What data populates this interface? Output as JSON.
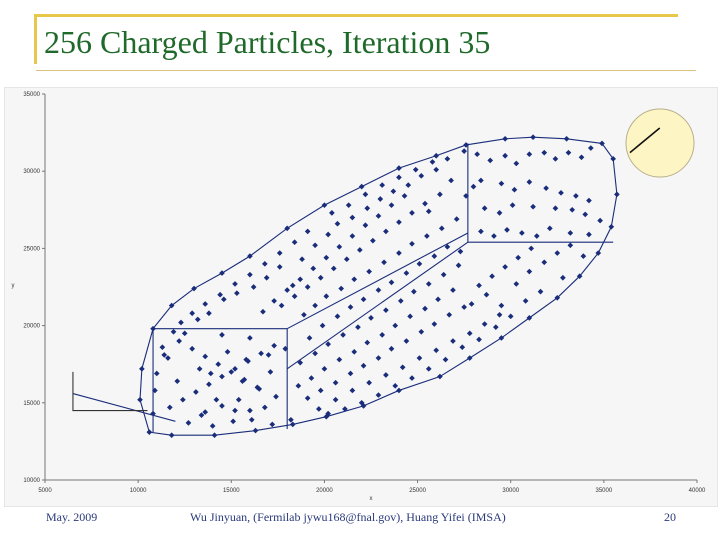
{
  "slide": {
    "title": "256 Charged Particles, Iteration 35",
    "footer_date": "May. 2009",
    "footer_credit": "Wu Jinyuan, (Fermilab jywu168@fnal.gov), Huang Yifei (IMSA)",
    "page_number": "20"
  },
  "colors": {
    "accent_bar": "#e8c84a",
    "title": "#1f6a2a",
    "points": "#1a2d7a",
    "hull": "#1a2d7a",
    "direction_circle": "#fdf5c4"
  },
  "chart_data": {
    "type": "scatter",
    "xlabel": "x",
    "ylabel": "y",
    "xlim": [
      5000,
      40000
    ],
    "ylim": [
      10000,
      35000
    ],
    "xticks": [
      5000,
      10000,
      15000,
      20000,
      25000,
      30000,
      35000,
      40000
    ],
    "yticks": [
      10000,
      15000,
      20000,
      25000,
      30000,
      35000
    ],
    "x_tick_labels": [
      "5000",
      "10000",
      "15000",
      "20000",
      "25000",
      "30000",
      "35000",
      "40000"
    ],
    "y_tick_labels": [
      "10000",
      "15000",
      "20000",
      "25000",
      "30000",
      "35000"
    ],
    "grid": false,
    "hull_points": [
      [
        10200,
        17200
      ],
      [
        10800,
        19800
      ],
      [
        11800,
        21300
      ],
      [
        13000,
        22400
      ],
      [
        14500,
        23400
      ],
      [
        16000,
        24500
      ],
      [
        18000,
        26300
      ],
      [
        20000,
        27800
      ],
      [
        22000,
        29000
      ],
      [
        24000,
        30200
      ],
      [
        26000,
        31000
      ],
      [
        27600,
        31700
      ],
      [
        29700,
        32100
      ],
      [
        31200,
        32200
      ],
      [
        33000,
        32100
      ],
      [
        34900,
        31800
      ],
      [
        35500,
        30800
      ],
      [
        35700,
        28500
      ],
      [
        35400,
        26400
      ],
      [
        34700,
        24700
      ],
      [
        33700,
        23200
      ],
      [
        32500,
        21800
      ],
      [
        31000,
        20500
      ],
      [
        29500,
        19200
      ],
      [
        27800,
        17900
      ],
      [
        26200,
        16700
      ],
      [
        24000,
        15800
      ],
      [
        22100,
        14800
      ],
      [
        20100,
        14100
      ],
      [
        18300,
        13600
      ],
      [
        16300,
        13200
      ],
      [
        14100,
        12900
      ],
      [
        11800,
        12900
      ],
      [
        10600,
        13100
      ],
      [
        10100,
        15200
      ]
    ],
    "box_lines": [
      [
        [
          10800,
          19800
        ],
        [
          18000,
          19800
        ]
      ],
      [
        [
          10800,
          19800
        ],
        [
          10800,
          13100
        ]
      ],
      [
        [
          18000,
          19800
        ],
        [
          18000,
          13300
        ]
      ],
      [
        [
          27700,
          31800
        ],
        [
          27700,
          25400
        ]
      ],
      [
        [
          27700,
          25400
        ],
        [
          35500,
          25400
        ]
      ],
      [
        [
          18000,
          19800
        ],
        [
          27700,
          26000
        ]
      ],
      [
        [
          18000,
          17200
        ],
        [
          27700,
          25400
        ]
      ],
      [
        [
          6500,
          15600
        ],
        [
          12000,
          13800
        ]
      ]
    ],
    "axes_glyph": [
      [
        6500,
        17000
      ],
      [
        6500,
        14500
      ],
      [
        10500,
        14500
      ]
    ],
    "direction_arrow": {
      "from": [
        38000,
        32800
      ],
      "to": [
        36400,
        31200
      ]
    },
    "points": [
      [
        10900,
        15800
      ],
      [
        11600,
        17900
      ],
      [
        12100,
        16400
      ],
      [
        11300,
        18600
      ],
      [
        12700,
        13700
      ],
      [
        13400,
        14200
      ],
      [
        12500,
        19500
      ],
      [
        13300,
        17200
      ],
      [
        13900,
        16900
      ],
      [
        14200,
        15200
      ],
      [
        14800,
        18300
      ],
      [
        15200,
        14500
      ],
      [
        15600,
        16400
      ],
      [
        15800,
        17800
      ],
      [
        16500,
        15900
      ],
      [
        17100,
        17000
      ],
      [
        16800,
        14700
      ],
      [
        17400,
        15400
      ],
      [
        17900,
        18500
      ],
      [
        16000,
        19200
      ],
      [
        14500,
        19400
      ],
      [
        13200,
        20400
      ],
      [
        13800,
        20800
      ],
      [
        14600,
        21700
      ],
      [
        15300,
        22100
      ],
      [
        16200,
        22500
      ],
      [
        16900,
        23100
      ],
      [
        17600,
        23800
      ],
      [
        18300,
        22600
      ],
      [
        18800,
        24300
      ],
      [
        19500,
        25200
      ],
      [
        20200,
        25900
      ],
      [
        20700,
        26600
      ],
      [
        21500,
        27000
      ],
      [
        22300,
        27600
      ],
      [
        23000,
        28200
      ],
      [
        23700,
        28700
      ],
      [
        24500,
        29100
      ],
      [
        25200,
        29700
      ],
      [
        26000,
        30100
      ],
      [
        26600,
        30800
      ],
      [
        27500,
        31300
      ],
      [
        28200,
        31100
      ],
      [
        28900,
        30700
      ],
      [
        29700,
        31000
      ],
      [
        30300,
        30500
      ],
      [
        31000,
        31100
      ],
      [
        31800,
        31200
      ],
      [
        32400,
        30800
      ],
      [
        33100,
        31200
      ],
      [
        33800,
        30900
      ],
      [
        34300,
        31500
      ],
      [
        28400,
        29400
      ],
      [
        29500,
        29200
      ],
      [
        30200,
        28800
      ],
      [
        31000,
        29300
      ],
      [
        31900,
        28900
      ],
      [
        32700,
        28600
      ],
      [
        33500,
        28400
      ],
      [
        34200,
        28100
      ],
      [
        28600,
        27600
      ],
      [
        29400,
        27300
      ],
      [
        30100,
        27800
      ],
      [
        31200,
        27700
      ],
      [
        32400,
        27600
      ],
      [
        33300,
        27500
      ],
      [
        34000,
        27200
      ],
      [
        34800,
        26800
      ],
      [
        28400,
        26100
      ],
      [
        29100,
        25800
      ],
      [
        29800,
        26200
      ],
      [
        30600,
        26000
      ],
      [
        31400,
        25800
      ],
      [
        32100,
        26300
      ],
      [
        33200,
        26000
      ],
      [
        34200,
        25900
      ],
      [
        18900,
        20700
      ],
      [
        19500,
        21300
      ],
      [
        20100,
        21900
      ],
      [
        20900,
        22400
      ],
      [
        21600,
        23000
      ],
      [
        22400,
        23500
      ],
      [
        23200,
        24100
      ],
      [
        24000,
        24700
      ],
      [
        24700,
        25300
      ],
      [
        25500,
        25800
      ],
      [
        26300,
        26300
      ],
      [
        27100,
        26900
      ],
      [
        19200,
        19200
      ],
      [
        19900,
        20000
      ],
      [
        20700,
        20600
      ],
      [
        21400,
        21200
      ],
      [
        22100,
        21700
      ],
      [
        22900,
        22300
      ],
      [
        23600,
        22800
      ],
      [
        24400,
        23400
      ],
      [
        25100,
        24000
      ],
      [
        25900,
        24500
      ],
      [
        26600,
        25100
      ],
      [
        27300,
        24800
      ],
      [
        18700,
        17600
      ],
      [
        19500,
        18200
      ],
      [
        20200,
        18800
      ],
      [
        21000,
        19400
      ],
      [
        21800,
        19900
      ],
      [
        22500,
        20500
      ],
      [
        23300,
        21000
      ],
      [
        24100,
        21600
      ],
      [
        24800,
        22200
      ],
      [
        25600,
        22700
      ],
      [
        26400,
        23300
      ],
      [
        27200,
        23900
      ],
      [
        18600,
        16100
      ],
      [
        19300,
        16600
      ],
      [
        20000,
        17200
      ],
      [
        20800,
        17800
      ],
      [
        21600,
        18300
      ],
      [
        22300,
        18900
      ],
      [
        23100,
        19400
      ],
      [
        23800,
        20000
      ],
      [
        24600,
        20600
      ],
      [
        25400,
        21100
      ],
      [
        26100,
        21700
      ],
      [
        26900,
        22300
      ],
      [
        19100,
        15300
      ],
      [
        19800,
        15800
      ],
      [
        20600,
        16300
      ],
      [
        21400,
        16900
      ],
      [
        22100,
        17400
      ],
      [
        22900,
        17900
      ],
      [
        23600,
        18500
      ],
      [
        24400,
        19000
      ],
      [
        25200,
        19600
      ],
      [
        25900,
        20100
      ],
      [
        26700,
        20700
      ],
      [
        27500,
        21200
      ],
      [
        19700,
        14600
      ],
      [
        20600,
        15200
      ],
      [
        21500,
        15800
      ],
      [
        22400,
        16300
      ],
      [
        23300,
        16800
      ],
      [
        24200,
        17300
      ],
      [
        25100,
        17900
      ],
      [
        26000,
        18400
      ],
      [
        26900,
        19000
      ],
      [
        27800,
        19500
      ],
      [
        28600,
        20100
      ],
      [
        29400,
        20700
      ],
      [
        17700,
        21300
      ],
      [
        18400,
        21900
      ],
      [
        19100,
        22500
      ],
      [
        19800,
        23100
      ],
      [
        20500,
        23700
      ],
      [
        21200,
        24300
      ],
      [
        21900,
        24900
      ],
      [
        22600,
        25500
      ],
      [
        23300,
        26100
      ],
      [
        24000,
        26700
      ],
      [
        24700,
        27300
      ],
      [
        25400,
        27900
      ],
      [
        16700,
        20900
      ],
      [
        17300,
        21600
      ],
      [
        18000,
        22300
      ],
      [
        18700,
        23000
      ],
      [
        19400,
        23700
      ],
      [
        20100,
        24400
      ],
      [
        20800,
        25100
      ],
      [
        21500,
        25800
      ],
      [
        22200,
        26500
      ],
      [
        22900,
        27100
      ],
      [
        23600,
        27800
      ],
      [
        24300,
        28400
      ],
      [
        27600,
        28400
      ],
      [
        28000,
        29000
      ],
      [
        26800,
        29400
      ],
      [
        26200,
        28500
      ],
      [
        25600,
        27400
      ],
      [
        28300,
        22600
      ],
      [
        29000,
        23200
      ],
      [
        29700,
        23800
      ],
      [
        30400,
        24400
      ],
      [
        31100,
        25000
      ],
      [
        27900,
        21400
      ],
      [
        28700,
        22000
      ],
      [
        29500,
        21300
      ],
      [
        30300,
        22700
      ],
      [
        31000,
        23500
      ],
      [
        31800,
        24100
      ],
      [
        32500,
        24700
      ],
      [
        33200,
        25200
      ],
      [
        33900,
        24500
      ],
      [
        32800,
        23100
      ],
      [
        31600,
        22200
      ],
      [
        30800,
        21600
      ],
      [
        30000,
        20600
      ],
      [
        29200,
        19900
      ],
      [
        28300,
        19100
      ],
      [
        27400,
        18600
      ],
      [
        26500,
        17800
      ],
      [
        25600,
        17200
      ],
      [
        24700,
        16600
      ],
      [
        23800,
        16100
      ],
      [
        22900,
        15500
      ],
      [
        22000,
        15000
      ],
      [
        21100,
        14600
      ],
      [
        20200,
        14300
      ],
      [
        12200,
        19000
      ],
      [
        12900,
        18500
      ],
      [
        13600,
        18000
      ],
      [
        14300,
        17500
      ],
      [
        15000,
        17000
      ],
      [
        15700,
        16500
      ],
      [
        16400,
        16000
      ],
      [
        17000,
        18100
      ],
      [
        15400,
        15200
      ],
      [
        14500,
        14800
      ],
      [
        13600,
        14400
      ],
      [
        16100,
        13900
      ],
      [
        17200,
        13600
      ],
      [
        18200,
        13900
      ],
      [
        11700,
        14700
      ],
      [
        12400,
        15200
      ],
      [
        13100,
        15700
      ],
      [
        13800,
        16200
      ],
      [
        14500,
        16700
      ],
      [
        15200,
        17200
      ],
      [
        15900,
        17700
      ],
      [
        16600,
        18200
      ],
      [
        17300,
        18700
      ],
      [
        14000,
        13500
      ],
      [
        15100,
        13800
      ],
      [
        16000,
        14500
      ],
      [
        20400,
        27300
      ],
      [
        21300,
        27800
      ],
      [
        22200,
        28500
      ],
      [
        23100,
        29100
      ],
      [
        24000,
        29600
      ],
      [
        24900,
        30100
      ],
      [
        25800,
        30600
      ],
      [
        19100,
        26100
      ],
      [
        18400,
        25400
      ],
      [
        17600,
        24700
      ],
      [
        16800,
        24000
      ],
      [
        16000,
        23300
      ],
      [
        15200,
        22700
      ],
      [
        14400,
        22000
      ],
      [
        13600,
        21400
      ],
      [
        12900,
        20800
      ],
      [
        12300,
        20200
      ],
      [
        11900,
        19600
      ],
      [
        11400,
        18100
      ],
      [
        11000,
        16900
      ],
      [
        10800,
        14300
      ]
    ]
  }
}
